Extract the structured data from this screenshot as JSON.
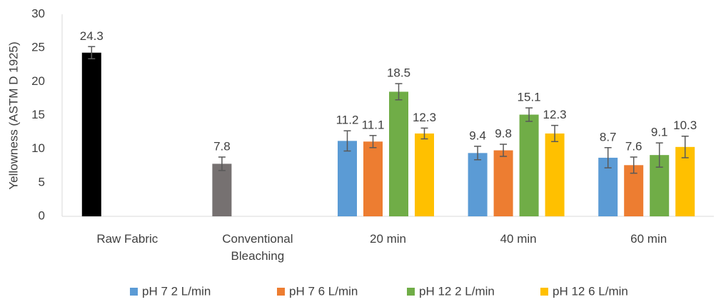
{
  "chart_data": {
    "type": "bar",
    "y_label": "Yellowness (ASTM D 1925)",
    "categories": [
      "Raw Fabric",
      "Conventional Bleaching",
      "20 min",
      "40 min",
      "60 min"
    ],
    "series": [
      {
        "colors": [
          "#000000",
          "#767171",
          null,
          null,
          null
        ],
        "values": [
          24.3,
          7.8,
          null,
          null,
          null
        ],
        "errors": [
          0.9,
          1.0,
          null,
          null,
          null
        ]
      },
      {
        "name": "pH 7 2 L/min",
        "color": "#5b9bd5",
        "values": [
          null,
          null,
          11.2,
          9.4,
          8.7
        ],
        "errors": [
          null,
          null,
          1.5,
          1.0,
          1.5
        ]
      },
      {
        "name": "pH 7 6 L/min",
        "color": "#ed7d31",
        "values": [
          null,
          null,
          11.1,
          9.8,
          7.6
        ],
        "errors": [
          null,
          null,
          0.9,
          0.9,
          1.2
        ]
      },
      {
        "name": "pH 12 2 L/min",
        "color": "#70ad47",
        "values": [
          null,
          null,
          18.5,
          15.1,
          9.1
        ],
        "errors": [
          null,
          null,
          1.2,
          1.0,
          1.8
        ]
      },
      {
        "name": "pH 12 6 L/min",
        "color": "#ffc000",
        "values": [
          null,
          null,
          12.3,
          12.3,
          10.3
        ],
        "errors": [
          null,
          null,
          0.8,
          1.2,
          1.6
        ]
      }
    ],
    "ylim": [
      0,
      30
    ],
    "yticks": [
      0,
      5,
      10,
      15,
      20,
      25,
      30
    ],
    "grid": false
  }
}
